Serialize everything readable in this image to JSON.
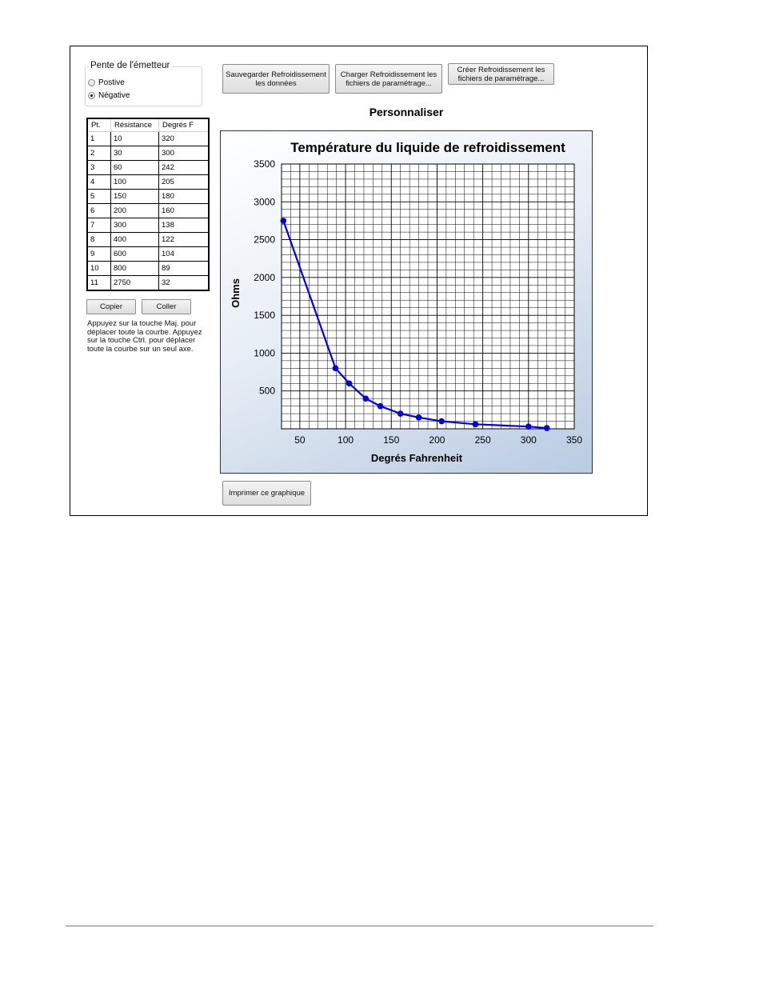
{
  "sender_slope": {
    "title": "Pente de l'émetteur",
    "options": [
      {
        "label": "Postive",
        "selected": false
      },
      {
        "label": "Négative",
        "selected": true
      }
    ]
  },
  "table": {
    "headers": [
      "Pt.",
      "Résistance",
      "Degrés F"
    ],
    "rows": [
      [
        "1",
        "10",
        "320"
      ],
      [
        "2",
        "30",
        "300"
      ],
      [
        "3",
        "60",
        "242"
      ],
      [
        "4",
        "100",
        "205"
      ],
      [
        "5",
        "150",
        "180"
      ],
      [
        "6",
        "200",
        "160"
      ],
      [
        "7",
        "300",
        "138"
      ],
      [
        "8",
        "400",
        "122"
      ],
      [
        "9",
        "600",
        "104"
      ],
      [
        "10",
        "800",
        "89"
      ],
      [
        "11",
        "2750",
        "32"
      ]
    ]
  },
  "buttons": {
    "copy": "Copier",
    "paste": "Coller",
    "save": "Sauvegarder Refroidissement les données",
    "load": "Charger Refroidissement les fichiers de paramétrage...",
    "create": "Créer Refroidissement les fichiers de paramétrage...",
    "print": "Imprimer ce graphique"
  },
  "hint": "Appuyez sur la touche Maj. pour déplacer toute la courbe. Appuyez sur la touche Ctrl. pour déplacer toute la courbe sur un seul axe.",
  "customize_label": "Personnaliser",
  "colors": {
    "series": "#0000e0",
    "accent_line": "#4f81bd"
  },
  "chart_data": {
    "type": "line",
    "title": "Température du liquide de refroidissement",
    "xlabel": "Degrés Fahrenheit",
    "ylabel": "Ohms",
    "xlim": [
      30,
      350
    ],
    "ylim": [
      0,
      3500
    ],
    "x_ticks": [
      50,
      100,
      150,
      200,
      250,
      300,
      350
    ],
    "y_ticks": [
      500,
      1000,
      1500,
      2000,
      2500,
      3000,
      3500
    ],
    "grid": true,
    "x": [
      32,
      89,
      104,
      122,
      138,
      160,
      180,
      205,
      242,
      300,
      320
    ],
    "values": [
      2750,
      800,
      600,
      400,
      300,
      200,
      150,
      100,
      60,
      30,
      10
    ]
  }
}
